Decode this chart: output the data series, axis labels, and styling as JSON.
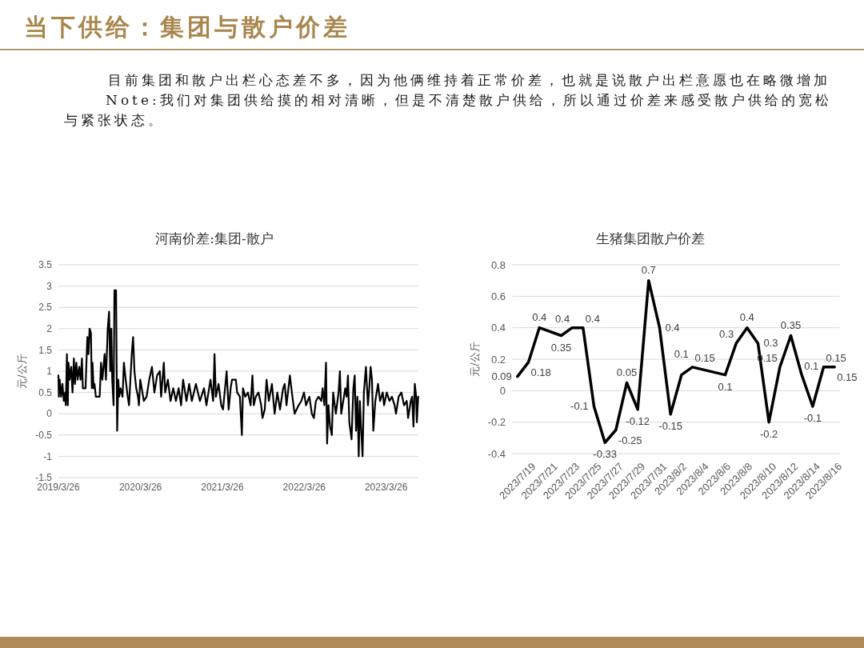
{
  "chart_data": [
    {
      "type": "other",
      "title": "当下供给：集团与散户价差",
      "annotations": [
        "目前集团和散户出栏心态差不多，因为他俩维持着正常价差，也就是说散户出栏意愿也在略微增加",
        "Note:我们对集团供给摸的相对清晰，但是不清楚散户供给，所以通过价差来感受散户供给的宽松与紧张状态。"
      ]
    },
    {
      "type": "line",
      "title": "河南价差:集团-散户",
      "ylabel": "元/公斤",
      "grid": "y",
      "x": [
        "2019-03-26",
        "2019-03-28",
        "2019-04-01",
        "2019-04-07",
        "2019-04-13",
        "2019-04-19",
        "2019-04-25",
        "2019-04-28",
        "2019-05-03",
        "2019-05-07",
        "2019-05-10",
        "2019-05-15",
        "2019-05-22",
        "2019-05-28",
        "2019-06-03",
        "2019-06-08",
        "2019-06-14",
        "2019-06-20",
        "2019-06-27",
        "2019-07-03",
        "2019-07-09",
        "2019-07-13",
        "2019-07-25",
        "2019-08-02",
        "2019-08-07",
        "2019-08-12",
        "2019-08-18",
        "2019-08-22",
        "2019-08-25",
        "2019-08-30",
        "2019-09-03",
        "2019-09-09",
        "2019-09-26",
        "2019-10-02",
        "2019-10-08",
        "2019-10-18",
        "2019-10-24",
        "2019-11-01",
        "2019-11-07",
        "2019-11-12",
        "2019-11-17",
        "2019-11-21",
        "2019-11-27",
        "2019-12-01",
        "2019-12-08",
        "2019-12-13",
        "2019-12-18",
        "2019-12-22",
        "2019-12-28",
        "2020-01-06",
        "2020-01-12",
        "2020-01-20",
        "2020-01-29",
        "2020-02-04",
        "2020-02-10",
        "2020-02-16",
        "2020-02-22",
        "2020-02-28",
        "2020-03-07",
        "2020-03-15",
        "2020-03-19",
        "2020-03-25",
        "2020-04-10",
        "2020-04-22",
        "2020-05-04",
        "2020-05-16",
        "2020-05-27",
        "2020-06-08",
        "2020-06-20",
        "2020-06-26",
        "2020-07-08",
        "2020-07-14",
        "2020-07-26",
        "2020-08-07",
        "2020-08-19",
        "2020-08-31",
        "2020-09-12",
        "2020-09-23",
        "2020-10-02",
        "2020-10-17",
        "2020-10-29",
        "2020-11-10",
        "2020-11-28",
        "2020-12-16",
        "2021-01-03",
        "2021-01-14",
        "2021-02-01",
        "2021-02-13",
        "2021-02-19",
        "2021-02-25",
        "2021-03-09",
        "2021-03-21",
        "2021-03-29",
        "2021-04-14",
        "2021-04-23",
        "2021-05-02",
        "2021-05-08",
        "2021-05-25",
        "2021-05-31",
        "2021-06-12",
        "2021-06-21",
        "2021-06-26",
        "2021-07-06",
        "2021-07-18",
        "2021-07-30",
        "2021-08-07",
        "2021-08-13",
        "2021-08-22",
        "2021-09-03",
        "2021-09-15",
        "2021-09-21",
        "2021-10-01",
        "2021-10-09",
        "2021-10-19",
        "2021-11-02",
        "2021-11-14",
        "2021-11-26",
        "2021-12-08",
        "2021-12-22",
        "2021-12-29",
        "2022-01-06",
        "2022-01-21",
        "2022-01-30",
        "2022-02-11",
        "2022-03-01",
        "2022-03-13",
        "2022-03-25",
        "2022-04-03",
        "2022-04-18",
        "2022-04-29",
        "2022-05-08",
        "2022-05-17",
        "2022-05-29",
        "2022-06-10",
        "2022-06-16",
        "2022-06-24",
        "2022-07-01",
        "2022-07-06",
        "2022-07-12",
        "2022-07-19",
        "2022-07-27",
        "2022-08-02",
        "2022-08-14",
        "2022-08-26",
        "2022-09-01",
        "2022-09-07",
        "2022-09-13",
        "2022-09-25",
        "2022-10-01",
        "2022-10-07",
        "2022-10-13",
        "2022-10-23",
        "2022-10-31",
        "2022-11-06",
        "2022-11-12",
        "2022-11-18",
        "2022-11-24",
        "2022-11-29",
        "2022-12-05",
        "2022-12-11",
        "2022-12-17",
        "2022-12-26",
        "2023-01-04",
        "2023-01-10",
        "2023-01-16",
        "2023-01-22",
        "2023-01-28",
        "2023-02-06",
        "2023-02-18",
        "2023-02-27",
        "2023-03-11",
        "2023-03-17",
        "2023-03-29",
        "2023-04-10",
        "2023-04-21",
        "2023-05-03",
        "2023-05-09",
        "2023-05-21",
        "2023-06-02",
        "2023-06-14",
        "2023-06-26",
        "2023-07-02",
        "2023-07-14",
        "2023-07-20",
        "2023-07-26",
        "2023-08-01",
        "2023-08-07",
        "2023-08-10",
        "2023-08-16"
      ],
      "series": [
        {
          "color": "#000000",
          "values": [
            0.9,
            0.4,
            0.8,
            0.4,
            0.7,
            0.3,
            0.5,
            0.2,
            1.4,
            0.2,
            1.2,
            0.8,
            1.1,
            0.5,
            1.3,
            0.7,
            1.2,
            0.8,
            1.1,
            0.8,
            1.3,
            0.6,
            0.6,
            1.8,
            1.4,
            2.0,
            1.9,
            0.6,
            1.2,
            0.6,
            0.7,
            0.4,
            0.4,
            1.2,
            0.8,
            1.4,
            0.8,
            2.0,
            2.4,
            1.0,
            2.0,
            0.8,
            0.2,
            2.9,
            2.9,
            -0.4,
            0.8,
            0.4,
            0.6,
            0.4,
            1.2,
            0.8,
            0.4,
            0.2,
            0.8,
            1.4,
            1.8,
            1.0,
            0.6,
            0.4,
            0.2,
            0.8,
            0.3,
            0.4,
            0.8,
            1.1,
            0.5,
            0.9,
            1.0,
            0.4,
            1.2,
            0.5,
            0.8,
            0.3,
            0.6,
            0.3,
            0.6,
            0.2,
            0.8,
            0.3,
            0.7,
            0.3,
            0.7,
            0.3,
            0.6,
            0.2,
            0.8,
            0.3,
            1.4,
            0.4,
            0.7,
            0.2,
            0.1,
            1.0,
            0.1,
            0.6,
            0.8,
            0.8,
            0.5,
            0.4,
            -0.5,
            0.6,
            0.4,
            0.5,
            0.2,
            0.9,
            0.2,
            0.4,
            0.5,
            0.2,
            -0.1,
            0.1,
            0.8,
            0.3,
            0.7,
            0.0,
            0.5,
            0.1,
            0.6,
            0.7,
            0.2,
            0.9,
            0.5,
            0.0,
            0.2,
            0.3,
            0.5,
            0.2,
            0.4,
            0.0,
            -0.1,
            0.3,
            0.4,
            0.3,
            0.6,
            0.2,
            1.2,
            -0.7,
            0.2,
            -0.3,
            -0.5,
            0.5,
            0.0,
            0.5,
            1.0,
            0.0,
            0.2,
            0.6,
            0.4,
            0.9,
            -0.2,
            -0.6,
            0.6,
            0.9,
            -0.4,
            0.4,
            -1.0,
            0.3,
            -0.4,
            -1.0,
            0.5,
            1.1,
            0.2,
            0.6,
            1.1,
            0.8,
            -0.4,
            0.3,
            0.7,
            0.3,
            0.5,
            0.2,
            0.5,
            0.3,
            0.4,
            0.2,
            0.0,
            0.4,
            0.5,
            0.2,
            0.3,
            -0.1,
            0.3,
            0.4,
            -0.3,
            0.7,
            0.4,
            -0.2,
            0.4
          ]
        }
      ],
      "xlim": [
        "2019-03-26",
        "2023-08-17"
      ],
      "xticks": [
        {
          "value": "2019-03-26",
          "label": "2019/3/26"
        },
        {
          "value": "2020-03-26",
          "label": "2020/3/26"
        },
        {
          "value": "2021-03-26",
          "label": "2021/3/26"
        },
        {
          "value": "2022-03-26",
          "label": "2022/3/26"
        },
        {
          "value": "2023-03-26",
          "label": "2023/3/26"
        }
      ],
      "ylim": [
        -1.5,
        3.5
      ],
      "yticks": [
        -1.5,
        -1,
        -0.5,
        0,
        0.5,
        1,
        1.5,
        2,
        2.5,
        3,
        3.5
      ]
    },
    {
      "type": "line",
      "title": "生猪集团散户价差",
      "ylabel": "元/公斤",
      "grid": "y",
      "data_labels": true,
      "x": [
        "2023-07-19",
        "2023-07-20",
        "2023-07-21",
        "2023-07-23",
        "2023-07-24",
        "2023-07-25",
        "2023-07-26",
        "2023-07-27",
        "2023-07-28",
        "2023-07-29",
        "2023-07-30",
        "2023-07-31",
        "2023-08-01",
        "2023-08-02",
        "2023-08-03",
        "2023-08-04",
        "2023-08-07",
        "2023-08-08",
        "2023-08-09",
        "2023-08-10",
        "2023-08-11",
        "2023-08-12",
        "2023-08-13",
        "2023-08-14",
        "2023-08-15",
        "2023-08-16",
        "2023-08-17"
      ],
      "series": [
        {
          "color": "#000000",
          "values": [
            0.09,
            0.18,
            0.4,
            0.35,
            0.4,
            0.4,
            -0.1,
            -0.33,
            -0.25,
            0.05,
            -0.12,
            0.7,
            0.4,
            -0.15,
            0.1,
            0.15,
            0.1,
            0.3,
            0.4,
            0.3,
            -0.2,
            0.15,
            0.35,
            0.1,
            -0.1,
            0.15,
            0.15
          ]
        }
      ],
      "xlim": [
        "2023-07-18T12:00",
        "2023-08-17T12:00"
      ],
      "xticks": [
        {
          "value": "2023-07-19",
          "label": "2023/7/19"
        },
        {
          "value": "2023-07-21",
          "label": "2023/7/21"
        },
        {
          "value": "2023-07-23",
          "label": "2023/7/23"
        },
        {
          "value": "2023-07-25",
          "label": "2023/7/25"
        },
        {
          "value": "2023-07-27",
          "label": "2023/7/27"
        },
        {
          "value": "2023-07-29",
          "label": "2023/7/29"
        },
        {
          "value": "2023-07-31",
          "label": "2023/7/31"
        },
        {
          "value": "2023-08-02",
          "label": "2023/8/2"
        },
        {
          "value": "2023-08-04",
          "label": "2023/8/4"
        },
        {
          "value": "2023-08-06",
          "label": "2023/8/6"
        },
        {
          "value": "2023-08-08",
          "label": "2023/8/8"
        },
        {
          "value": "2023-08-10",
          "label": "2023/8/10"
        },
        {
          "value": "2023-08-12",
          "label": "2023/8/12"
        },
        {
          "value": "2023-08-14",
          "label": "2023/8/14"
        },
        {
          "value": "2023-08-16",
          "label": "2023/8/16"
        }
      ],
      "ylim": [
        -0.4,
        0.8
      ],
      "yticks": [
        -0.4,
        -0.2,
        0,
        0.2,
        0.4,
        0.6,
        0.8
      ]
    }
  ]
}
